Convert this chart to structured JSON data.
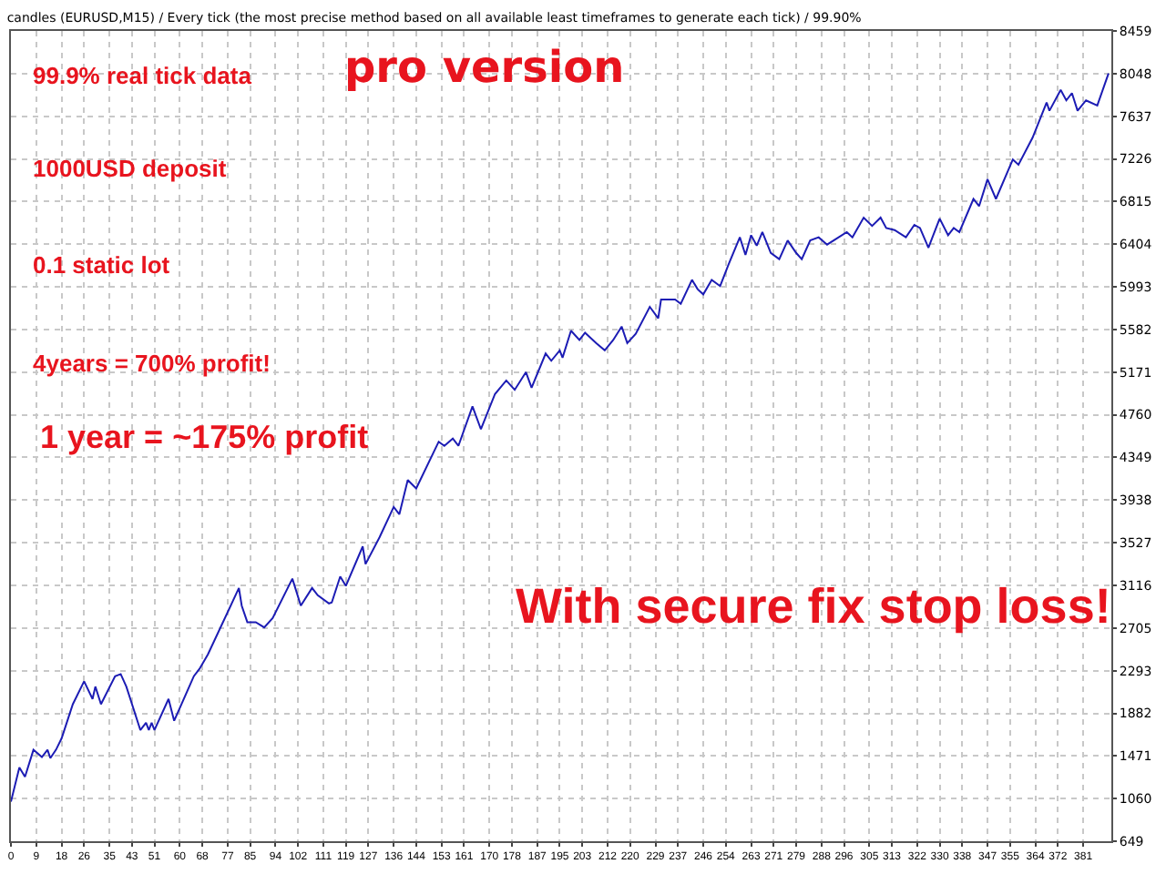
{
  "chart_data": {
    "type": "line",
    "title": "candles (EURUSD,M15) / Every tick (the most precise method based on all available least timeframes to generate each tick) / 99.90%",
    "annotations": [
      "99.9% real tick data",
      "pro version",
      "1000USD deposit",
      "0.1 static lot",
      "4years = 700% profit!",
      "1 year = ~175% profit",
      "With secure fix stop loss!"
    ],
    "series": [
      {
        "color": "#1c1cb4",
        "x": [
          0,
          3,
          5,
          8,
          11,
          13,
          14,
          16,
          18,
          22,
          26,
          29,
          30,
          32,
          37,
          39,
          41,
          46,
          48,
          49,
          50,
          51,
          56,
          58,
          65,
          67,
          70,
          81,
          82,
          84,
          87,
          90,
          93,
          100,
          103,
          107,
          109,
          113,
          114,
          117,
          119,
          125,
          126,
          131,
          136,
          138,
          141,
          144,
          152,
          154,
          157,
          159,
          164,
          167,
          172,
          176,
          179,
          183,
          185,
          190,
          192,
          195,
          196,
          199,
          202,
          204,
          208,
          211,
          214,
          217,
          219,
          222,
          227,
          230,
          231,
          236,
          238,
          242,
          244,
          246,
          249,
          252,
          255,
          259,
          261,
          263,
          265,
          267,
          270,
          273,
          276,
          279,
          281,
          284,
          287,
          290,
          297,
          299,
          303,
          306,
          309,
          311,
          314,
          318,
          321,
          323,
          326,
          330,
          333,
          335,
          337,
          342,
          344,
          347,
          350,
          356,
          358,
          363,
          368,
          369,
          373,
          375,
          377,
          379,
          382,
          386,
          390
        ],
        "values": [
          1030,
          1360,
          1270,
          1530,
          1460,
          1530,
          1450,
          1530,
          1640,
          1970,
          2190,
          2020,
          2140,
          1970,
          2240,
          2260,
          2140,
          1720,
          1790,
          1720,
          1790,
          1720,
          2020,
          1810,
          2240,
          2310,
          2450,
          3090,
          2920,
          2760,
          2760,
          2710,
          2800,
          3180,
          2920,
          3090,
          3020,
          2940,
          2950,
          3200,
          3110,
          3490,
          3320,
          3580,
          3870,
          3800,
          4130,
          4050,
          4500,
          4460,
          4530,
          4460,
          4840,
          4620,
          4960,
          5090,
          5000,
          5170,
          5020,
          5350,
          5280,
          5380,
          5310,
          5570,
          5480,
          5550,
          5450,
          5380,
          5480,
          5610,
          5450,
          5540,
          5800,
          5690,
          5870,
          5870,
          5830,
          6060,
          5970,
          5920,
          6060,
          6000,
          6210,
          6470,
          6300,
          6490,
          6390,
          6520,
          6320,
          6260,
          6440,
          6320,
          6260,
          6440,
          6470,
          6400,
          6520,
          6470,
          6660,
          6580,
          6660,
          6560,
          6540,
          6470,
          6590,
          6560,
          6370,
          6650,
          6490,
          6560,
          6520,
          6840,
          6770,
          7030,
          6840,
          7220,
          7170,
          7430,
          7770,
          7690,
          7890,
          7790,
          7860,
          7690,
          7790,
          7740,
          8050
        ]
      }
    ],
    "xlim": [
      0,
      391
    ],
    "xticks": [
      0,
      9,
      18,
      26,
      35,
      43,
      51,
      60,
      68,
      77,
      85,
      94,
      102,
      111,
      119,
      127,
      136,
      144,
      153,
      161,
      170,
      178,
      187,
      195,
      203,
      212,
      220,
      229,
      237,
      246,
      254,
      263,
      271,
      279,
      288,
      296,
      305,
      313,
      322,
      330,
      338,
      347,
      355,
      364,
      372,
      381
    ],
    "ylim": [
      649,
      8459
    ],
    "yticks": [
      649,
      1060,
      1471,
      1882,
      2293,
      2705,
      3116,
      3527,
      3938,
      4349,
      4760,
      5171,
      5582,
      5993,
      6404,
      6815,
      7226,
      7637,
      8048,
      8459
    ],
    "grid": true,
    "line_style": "solid",
    "marker": "none"
  }
}
